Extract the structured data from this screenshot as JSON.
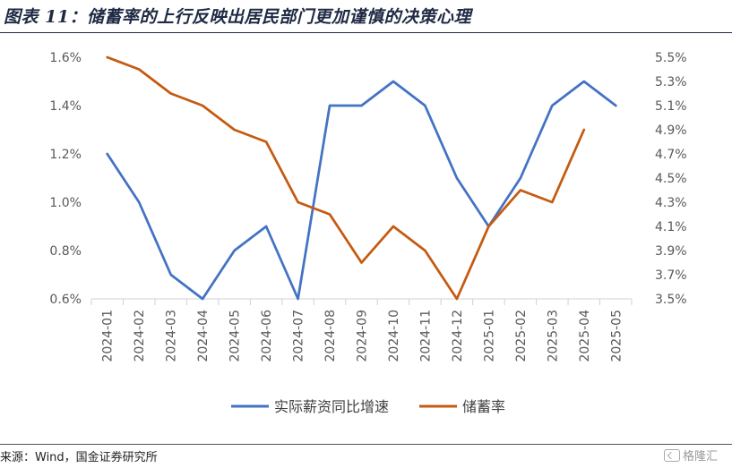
{
  "header": {
    "title": "图表 11：储蓄率的上行反映出居民部门更加谨慎的决策心理"
  },
  "footer": {
    "source": "来源：Wind，国金证券研究所",
    "watermark": "格隆汇",
    "watermark_icon": "gelonghui-logo-icon"
  },
  "chart_data": {
    "type": "line",
    "title": "",
    "categories": [
      "2024-01",
      "2024-02",
      "2024-03",
      "2024-04",
      "2024-05",
      "2024-06",
      "2024-07",
      "2024-08",
      "2024-09",
      "2024-10",
      "2024-11",
      "2024-12",
      "2025-01",
      "2025-02",
      "2025-03",
      "2025-04",
      "2025-05"
    ],
    "series": [
      {
        "name": "实际薪资同比增速",
        "axis": "left",
        "color": "#4472C4",
        "values": [
          1.2,
          1.0,
          0.7,
          0.6,
          0.8,
          0.9,
          0.6,
          1.4,
          1.4,
          1.5,
          1.4,
          1.1,
          0.9,
          1.1,
          1.4,
          1.5,
          1.4
        ]
      },
      {
        "name": "储蓄率",
        "axis": "right",
        "color": "#C55A11",
        "values": [
          5.5,
          5.4,
          5.2,
          5.1,
          4.9,
          4.8,
          4.3,
          4.2,
          3.8,
          4.1,
          3.9,
          3.5,
          4.1,
          4.4,
          4.3,
          4.9,
          null
        ]
      }
    ],
    "y_left": {
      "label": "",
      "ylim": [
        0.6,
        1.6
      ],
      "ticks": [
        0.6,
        0.8,
        1.0,
        1.2,
        1.4,
        1.6
      ],
      "tick_labels": [
        "0.6%",
        "0.8%",
        "1.0%",
        "1.2%",
        "1.4%",
        "1.6%"
      ]
    },
    "y_right": {
      "label": "",
      "ylim": [
        3.5,
        5.5
      ],
      "ticks": [
        3.5,
        3.7,
        3.9,
        4.1,
        4.3,
        4.5,
        4.7,
        4.9,
        5.1,
        5.3,
        5.5
      ],
      "tick_labels": [
        "3.5%",
        "3.7%",
        "3.9%",
        "4.1%",
        "4.3%",
        "4.5%",
        "4.7%",
        "4.9%",
        "5.1%",
        "5.3%",
        "5.5%"
      ]
    },
    "xlabel": "",
    "grid": false,
    "legend": "bottom"
  }
}
